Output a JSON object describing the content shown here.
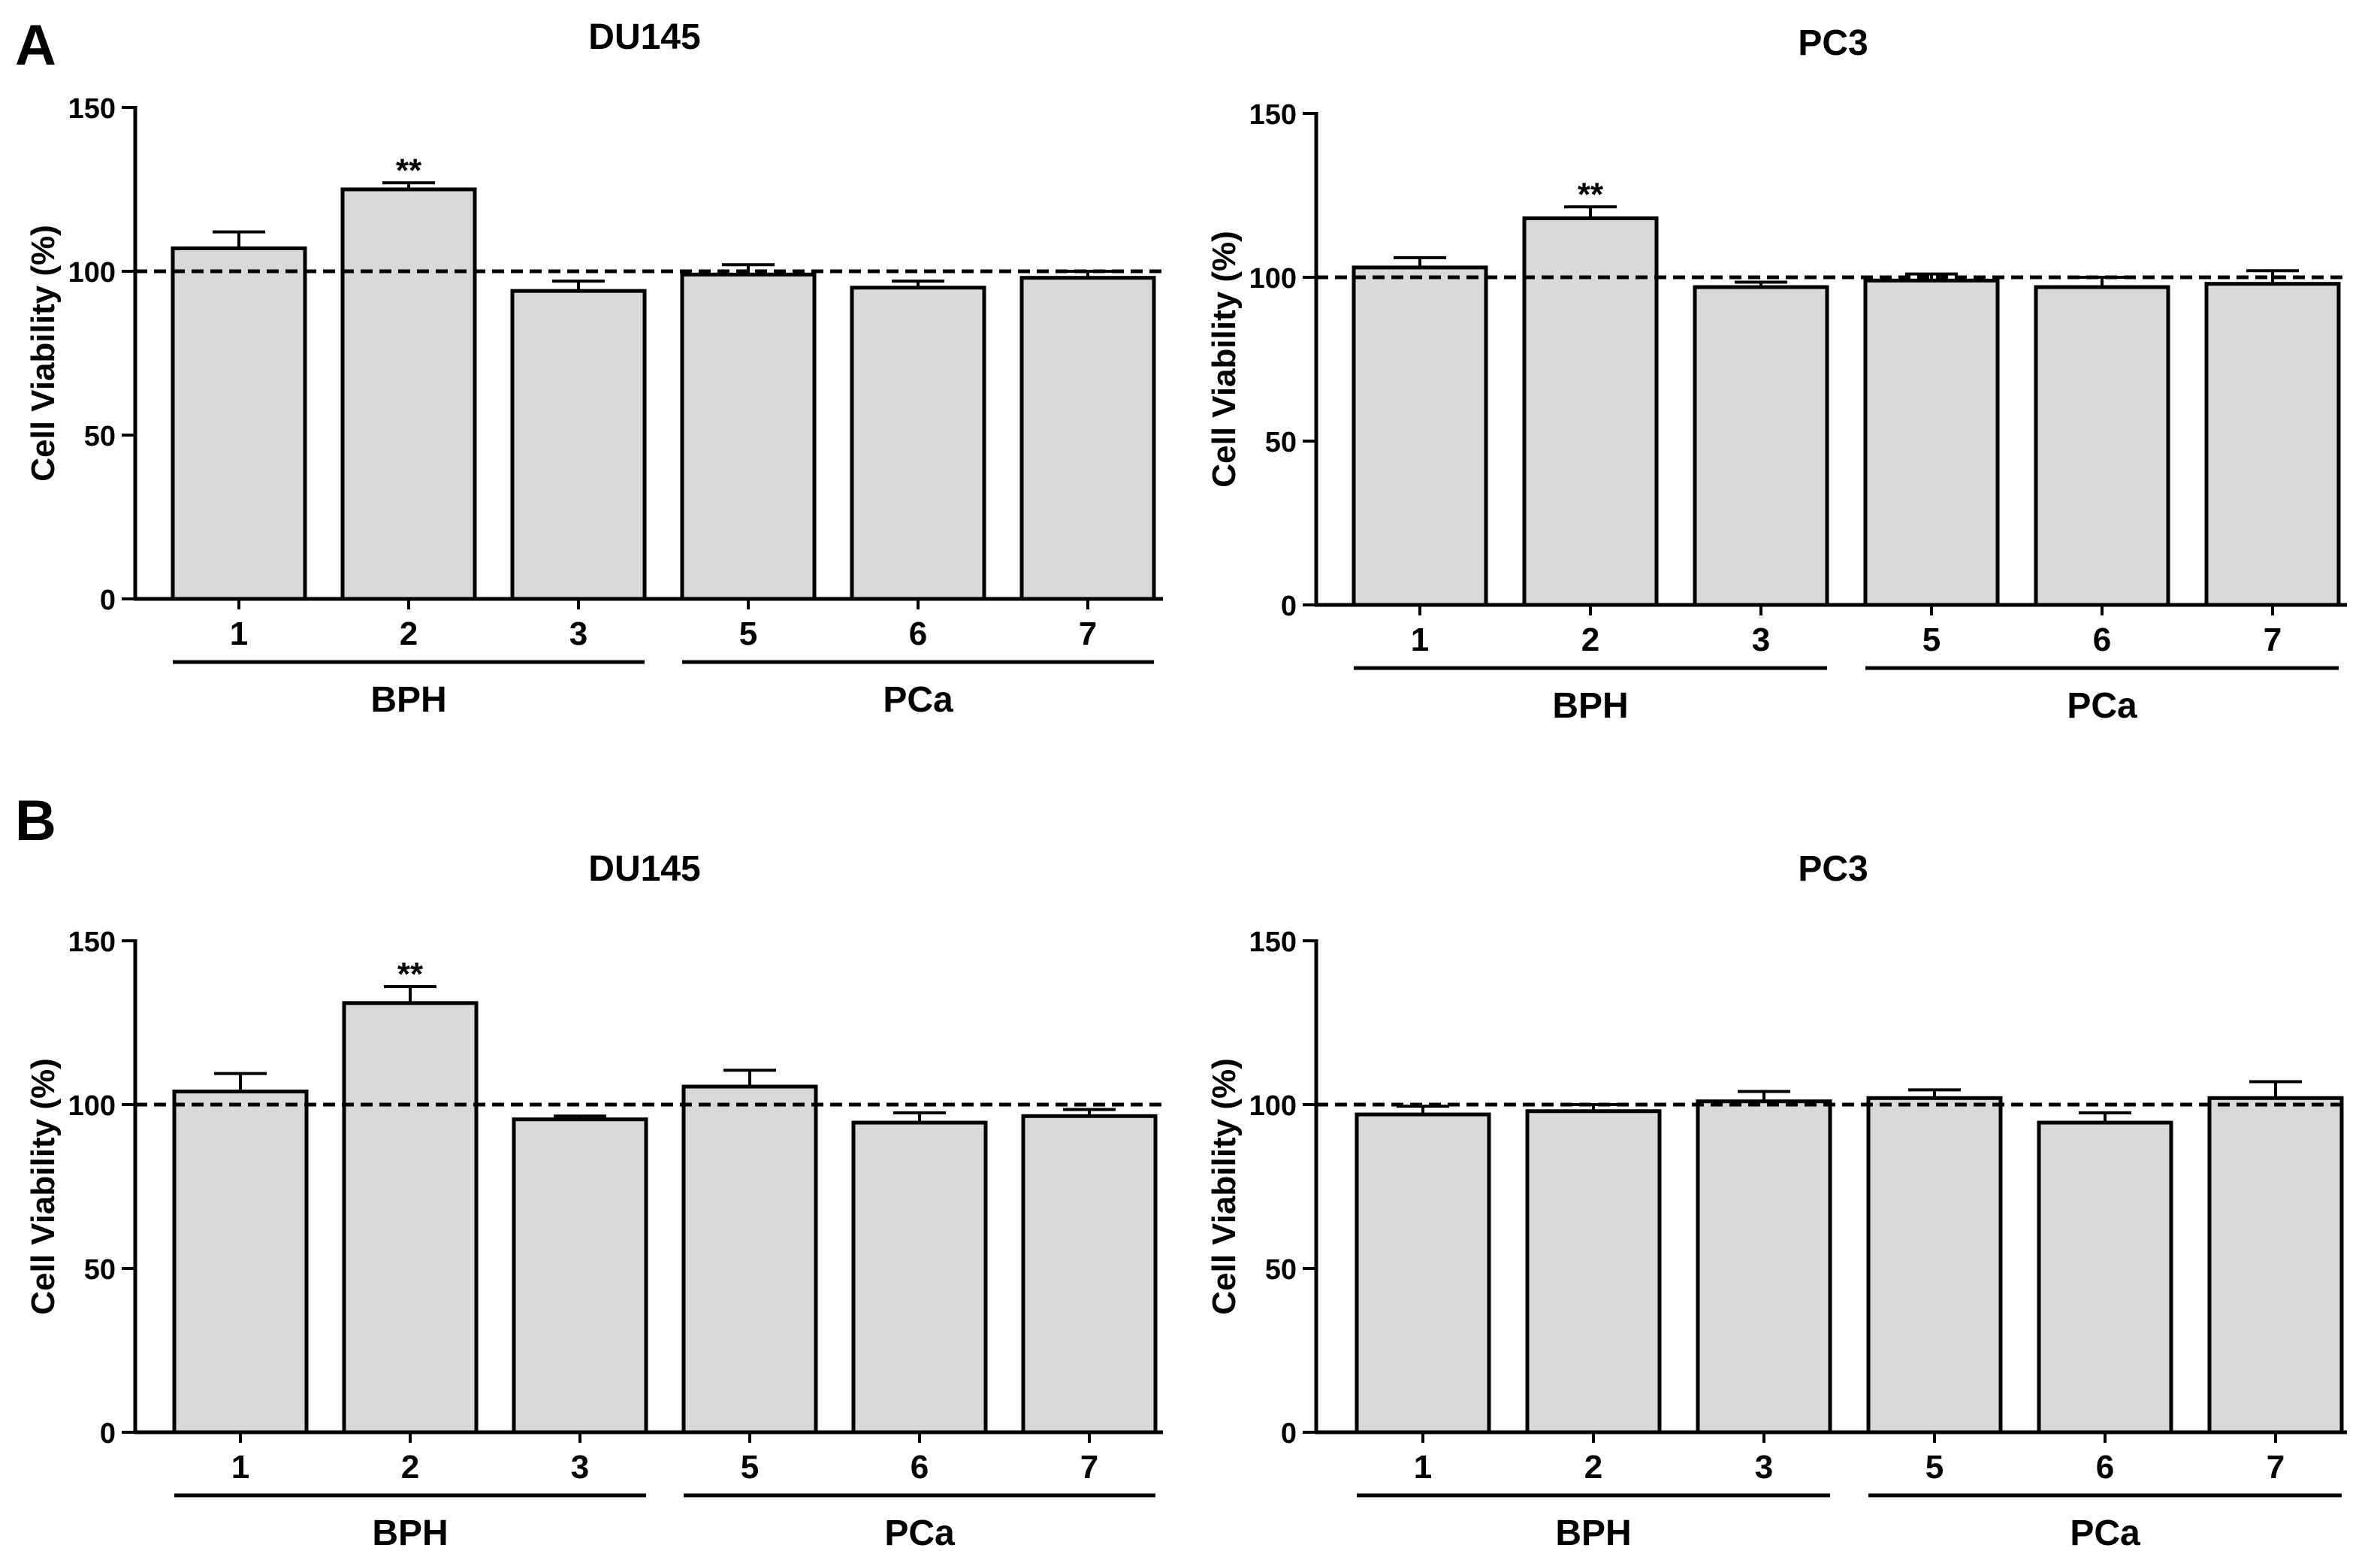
{
  "panels": [
    {
      "letter": "A"
    },
    {
      "letter": "B"
    }
  ],
  "chart_data": [
    {
      "type": "bar",
      "panel": "A",
      "title": "DU145",
      "categories": [
        "1",
        "2",
        "3",
        "5",
        "6",
        "7"
      ],
      "values": [
        107,
        125,
        94,
        99,
        95,
        98
      ],
      "errors": [
        5,
        2,
        3,
        3,
        2,
        2
      ],
      "significance": [
        "",
        "**",
        "",
        "",
        "",
        ""
      ],
      "groups": [
        {
          "label": "BPH",
          "categories": [
            "1",
            "2",
            "3"
          ]
        },
        {
          "label": "PCa",
          "categories": [
            "5",
            "6",
            "7"
          ]
        }
      ],
      "reference_line": 100,
      "xlabel": "",
      "ylabel": "Cell Viability (%)",
      "ylim": [
        0,
        150
      ],
      "yticks": [
        0,
        50,
        100,
        150
      ],
      "grid": false,
      "bar_color": "#d9d9d9"
    },
    {
      "type": "bar",
      "panel": "A",
      "title": "PC3",
      "categories": [
        "1",
        "2",
        "3",
        "5",
        "6",
        "7"
      ],
      "values": [
        103,
        118,
        97,
        99,
        97,
        98
      ],
      "errors": [
        3,
        3.5,
        1.5,
        2,
        3,
        4
      ],
      "significance": [
        "",
        "**",
        "",
        "",
        "",
        ""
      ],
      "groups": [
        {
          "label": "BPH",
          "categories": [
            "1",
            "2",
            "3"
          ]
        },
        {
          "label": "PCa",
          "categories": [
            "5",
            "6",
            "7"
          ]
        }
      ],
      "reference_line": 100,
      "xlabel": "",
      "ylabel": "Cell Viability (%)",
      "ylim": [
        0,
        150
      ],
      "yticks": [
        0,
        50,
        100,
        150
      ],
      "grid": false,
      "bar_color": "#d9d9d9"
    },
    {
      "type": "bar",
      "panel": "B",
      "title": "DU145",
      "categories": [
        "1",
        "2",
        "3",
        "5",
        "6",
        "7"
      ],
      "values": [
        104,
        131,
        95.5,
        105.5,
        94.5,
        96.5
      ],
      "errors": [
        5.5,
        5,
        1,
        5,
        3,
        2
      ],
      "significance": [
        "",
        "**",
        "",
        "",
        "",
        ""
      ],
      "groups": [
        {
          "label": "BPH",
          "categories": [
            "1",
            "2",
            "3"
          ]
        },
        {
          "label": "PCa",
          "categories": [
            "5",
            "6",
            "7"
          ]
        }
      ],
      "reference_line": 100,
      "xlabel": "",
      "ylabel": "Cell Viability (%)",
      "ylim": [
        0,
        150
      ],
      "yticks": [
        0,
        50,
        100,
        150
      ],
      "grid": false,
      "bar_color": "#d9d9d9"
    },
    {
      "type": "bar",
      "panel": "B",
      "title": "PC3",
      "categories": [
        "1",
        "2",
        "3",
        "5",
        "6",
        "7"
      ],
      "values": [
        97,
        98,
        101,
        102,
        94.5,
        102
      ],
      "errors": [
        2.5,
        2,
        3,
        2.5,
        3,
        5
      ],
      "significance": [
        "",
        "",
        "",
        "",
        "",
        ""
      ],
      "groups": [
        {
          "label": "BPH",
          "categories": [
            "1",
            "2",
            "3"
          ]
        },
        {
          "label": "PCa",
          "categories": [
            "5",
            "6",
            "7"
          ]
        }
      ],
      "reference_line": 100,
      "xlabel": "",
      "ylabel": "Cell Viability (%)",
      "ylim": [
        0,
        150
      ],
      "yticks": [
        0,
        50,
        100,
        150
      ],
      "grid": false,
      "bar_color": "#d9d9d9"
    }
  ]
}
